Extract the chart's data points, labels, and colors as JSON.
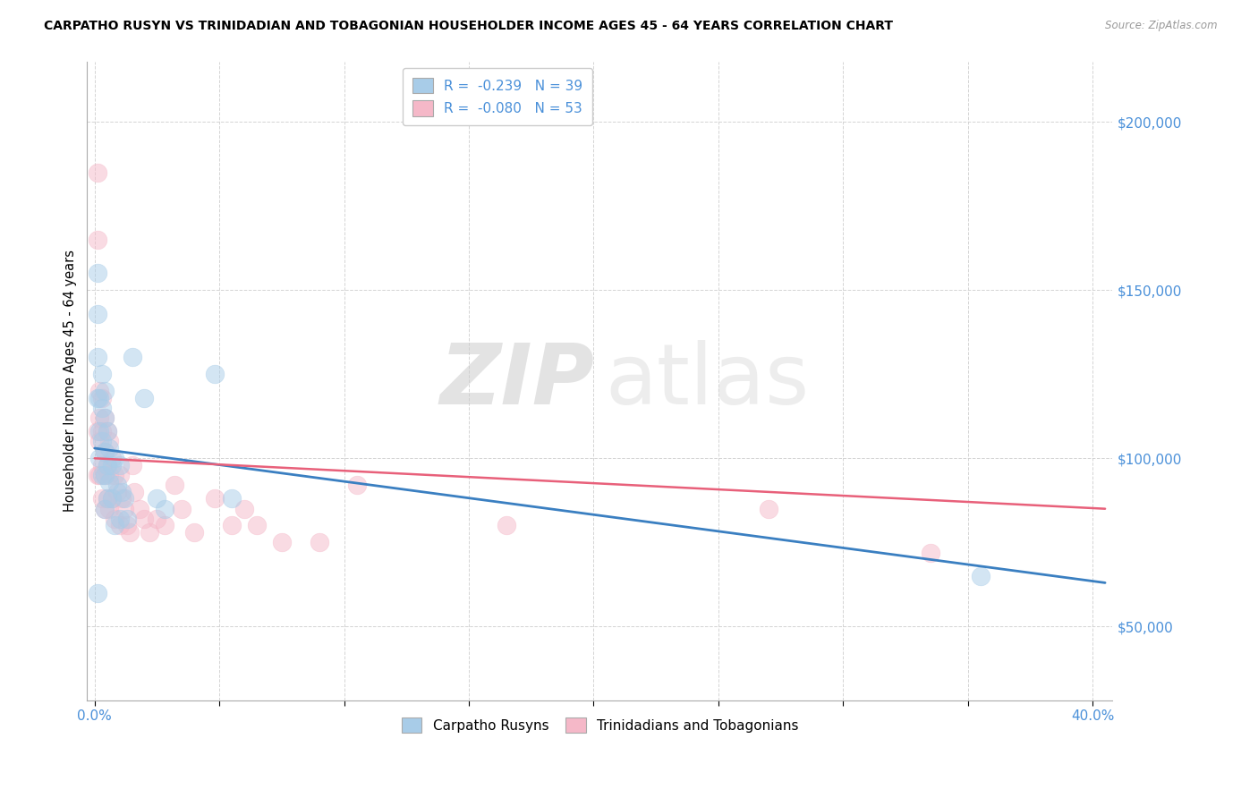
{
  "title": "CARPATHO RUSYN VS TRINIDADIAN AND TOBAGONIAN HOUSEHOLDER INCOME AGES 45 - 64 YEARS CORRELATION CHART",
  "source": "Source: ZipAtlas.com",
  "ylabel": "Householder Income Ages 45 - 64 years",
  "legend_r1": "R =  -0.239   N = 39",
  "legend_r2": "R =  -0.080   N = 53",
  "legend_bot1": "Carpatho Rusyns",
  "legend_bot2": "Trinidadians and Tobagonians",
  "blue_color": "#a8cce8",
  "pink_color": "#f5b8c8",
  "blue_line_color": "#3a7fc1",
  "pink_line_color": "#e8607a",
  "ytick_color": "#4a90d9",
  "xtick_color": "#4a90d9",
  "xlim": [
    -0.003,
    0.408
  ],
  "ylim": [
    28000,
    218000
  ],
  "yticks": [
    50000,
    100000,
    150000,
    200000
  ],
  "ytick_labels": [
    "$50,000",
    "$100,000",
    "$150,000",
    "$200,000"
  ],
  "xticks": [
    0.0,
    0.05,
    0.1,
    0.15,
    0.2,
    0.25,
    0.3,
    0.35,
    0.4
  ],
  "blue_scatter_x": [
    0.001,
    0.001,
    0.001,
    0.001,
    0.001,
    0.002,
    0.002,
    0.002,
    0.003,
    0.003,
    0.003,
    0.003,
    0.004,
    0.004,
    0.004,
    0.004,
    0.004,
    0.005,
    0.005,
    0.005,
    0.006,
    0.006,
    0.007,
    0.007,
    0.008,
    0.008,
    0.009,
    0.01,
    0.01,
    0.011,
    0.012,
    0.013,
    0.015,
    0.02,
    0.025,
    0.028,
    0.048,
    0.055,
    0.355
  ],
  "blue_scatter_y": [
    155000,
    143000,
    130000,
    118000,
    60000,
    118000,
    108000,
    100000,
    125000,
    115000,
    105000,
    95000,
    120000,
    112000,
    102000,
    95000,
    85000,
    108000,
    98000,
    88000,
    103000,
    93000,
    98000,
    88000,
    100000,
    80000,
    92000,
    98000,
    82000,
    90000,
    88000,
    82000,
    130000,
    118000,
    88000,
    85000,
    125000,
    88000,
    65000
  ],
  "pink_scatter_x": [
    0.001,
    0.001,
    0.001,
    0.001,
    0.002,
    0.002,
    0.002,
    0.002,
    0.003,
    0.003,
    0.003,
    0.003,
    0.004,
    0.004,
    0.004,
    0.004,
    0.005,
    0.005,
    0.005,
    0.006,
    0.006,
    0.006,
    0.007,
    0.007,
    0.008,
    0.008,
    0.009,
    0.01,
    0.01,
    0.011,
    0.012,
    0.013,
    0.014,
    0.015,
    0.016,
    0.018,
    0.02,
    0.022,
    0.025,
    0.028,
    0.032,
    0.035,
    0.04,
    0.048,
    0.055,
    0.06,
    0.065,
    0.075,
    0.09,
    0.105,
    0.165,
    0.27,
    0.335
  ],
  "pink_scatter_y": [
    185000,
    165000,
    108000,
    95000,
    120000,
    112000,
    105000,
    95000,
    118000,
    108000,
    98000,
    88000,
    112000,
    102000,
    95000,
    85000,
    108000,
    98000,
    88000,
    105000,
    95000,
    85000,
    100000,
    88000,
    95000,
    82000,
    90000,
    95000,
    80000,
    88000,
    85000,
    80000,
    78000,
    98000,
    90000,
    85000,
    82000,
    78000,
    82000,
    80000,
    92000,
    85000,
    78000,
    88000,
    80000,
    85000,
    80000,
    75000,
    75000,
    92000,
    80000,
    85000,
    72000
  ],
  "blue_line_x": [
    0.0,
    0.405
  ],
  "blue_line_y": [
    103000,
    63000
  ],
  "pink_line_x": [
    0.0,
    0.405
  ],
  "pink_line_y": [
    100000,
    85000
  ],
  "watermark_zip": "ZIP",
  "watermark_atlas": "atlas",
  "background_color": "#ffffff",
  "grid_color": "#d0d0d0"
}
